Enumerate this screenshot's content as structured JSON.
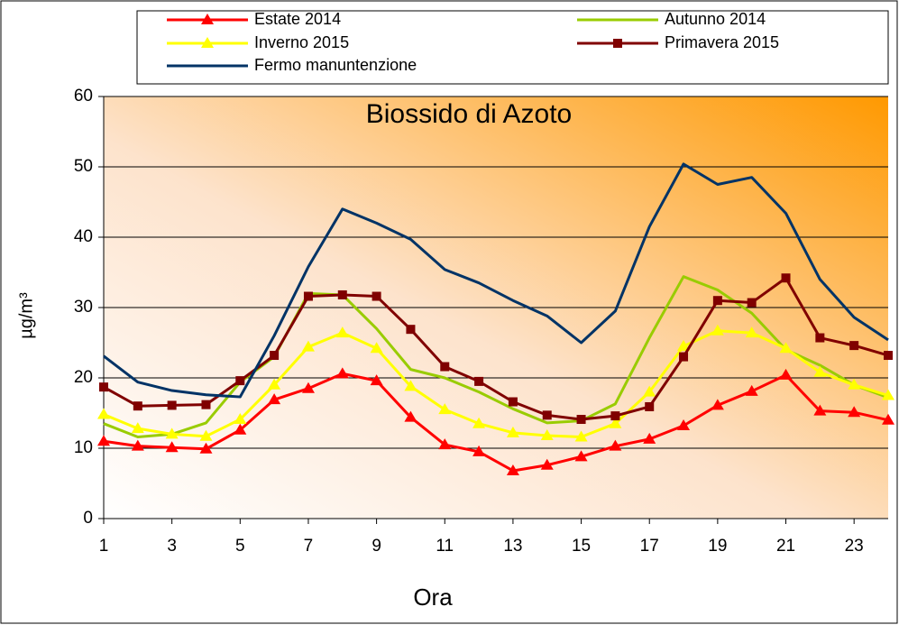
{
  "chart_data": {
    "type": "line",
    "title": "Biossido di Azoto",
    "x_label": "Ora",
    "y_label": "µg/m³",
    "x": [
      1,
      2,
      3,
      4,
      5,
      6,
      7,
      8,
      9,
      10,
      11,
      12,
      13,
      14,
      15,
      16,
      17,
      18,
      19,
      20,
      21,
      22,
      23,
      24
    ],
    "xlim": [
      1,
      24
    ],
    "xticks": [
      1,
      3,
      5,
      7,
      9,
      11,
      13,
      15,
      17,
      19,
      21,
      23
    ],
    "ylim": [
      0,
      60
    ],
    "yticks": [
      0,
      10,
      20,
      30,
      40,
      50,
      60
    ],
    "grid": true,
    "legend": "top",
    "series": [
      {
        "name": "Estate 2014",
        "color": "#ff0000",
        "marker": "triangle",
        "values": [
          11,
          10.3,
          10.1,
          9.9,
          12.6,
          16.9,
          18.5,
          20.6,
          19.6,
          14.4,
          10.5,
          9.5,
          6.8,
          7.6,
          8.8,
          10.3,
          11.3,
          13.2,
          16.1,
          18.1,
          20.4,
          15.3,
          15.1,
          14.0
        ]
      },
      {
        "name": "Autunno 2014",
        "color": "#99cc00",
        "marker": "none",
        "values": [
          13.5,
          11.6,
          12.0,
          13.6,
          19.4,
          23.0,
          32.0,
          31.8,
          27.0,
          21.2,
          20.0,
          18.0,
          15.6,
          13.6,
          13.9,
          16.3,
          25.7,
          34.4,
          32.5,
          29.2,
          24.0,
          21.8,
          19.0,
          17.2
        ]
      },
      {
        "name": "Inverno 2015",
        "color": "#ffff00",
        "marker": "triangle",
        "values": [
          14.8,
          12.8,
          12.0,
          11.7,
          14.1,
          19.0,
          24.4,
          26.4,
          24.2,
          18.8,
          15.5,
          13.5,
          12.2,
          11.8,
          11.6,
          13.5,
          18.0,
          24.5,
          26.7,
          26.4,
          24.2,
          20.8,
          19.0,
          17.5
        ]
      },
      {
        "name": "Primavera 2015",
        "color": "#800000",
        "marker": "square",
        "values": [
          18.7,
          16.0,
          16.1,
          16.2,
          19.6,
          23.2,
          31.6,
          31.8,
          31.6,
          26.9,
          21.6,
          19.5,
          16.6,
          14.7,
          14.1,
          14.6,
          15.9,
          23.0,
          31.0,
          30.7,
          34.2,
          25.7,
          24.6,
          23.2
        ]
      },
      {
        "name": "Fermo manuntenzione",
        "color": "#003366",
        "marker": "none",
        "values": [
          23.1,
          19.4,
          18.2,
          17.6,
          17.3,
          26.0,
          35.8,
          44.0,
          42.0,
          39.7,
          35.4,
          33.5,
          31.0,
          28.8,
          25.0,
          29.5,
          41.5,
          50.4,
          47.5,
          48.5,
          43.4,
          34.0,
          28.6,
          25.4
        ]
      }
    ]
  }
}
